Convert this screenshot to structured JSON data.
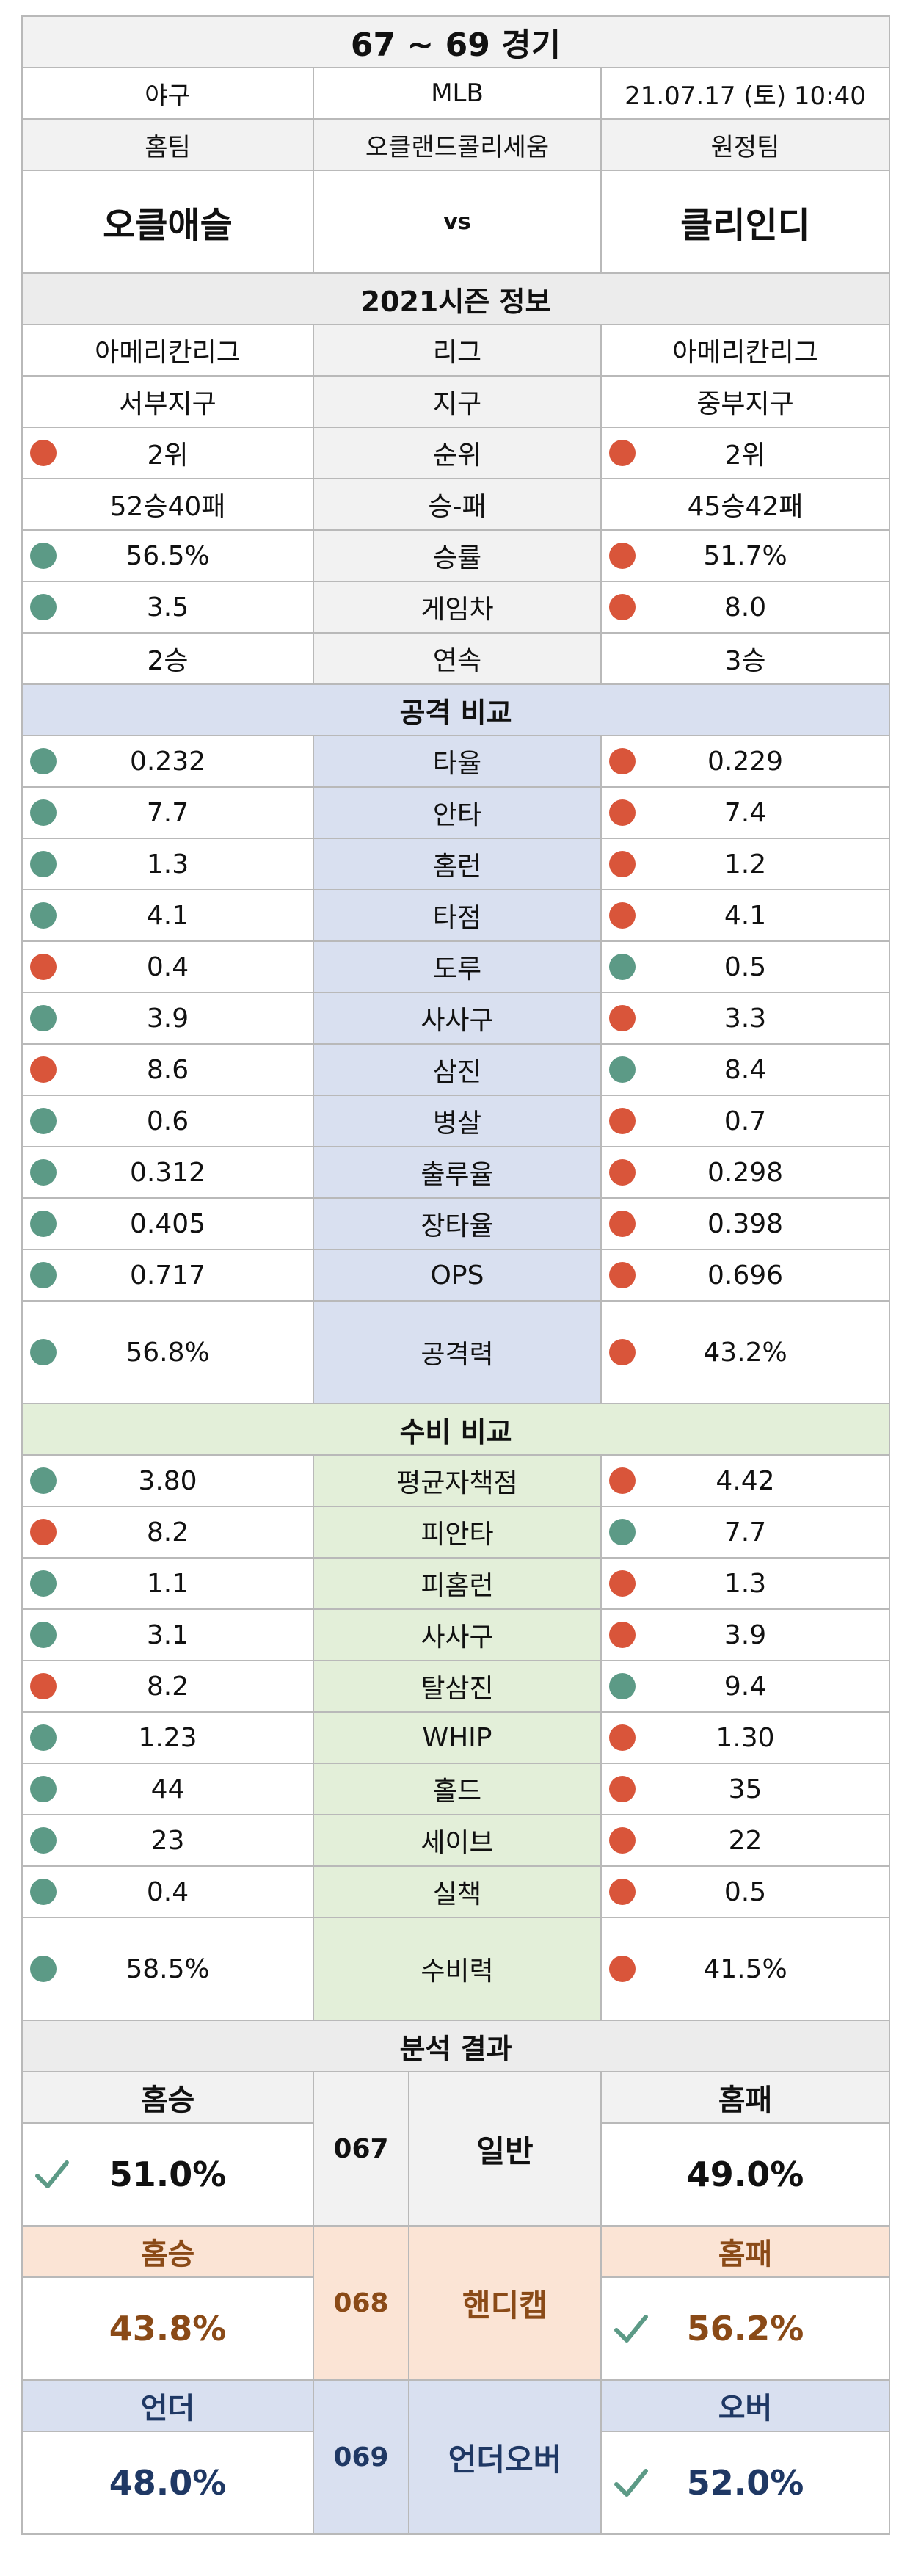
{
  "header": {
    "title": "67 ~ 69 경기",
    "sport": "야구",
    "league": "MLB",
    "datetime": "21.07.17 (토) 10:40",
    "home_label": "홈팀",
    "stadium": "오클랜드콜리세움",
    "away_label": "원정팀",
    "home_team": "오클애슬",
    "vs": "vs",
    "away_team": "클리인디"
  },
  "season": {
    "title": "2021시즌 정보",
    "rows": [
      {
        "home": "아메리칸리그",
        "label": "리그",
        "away": "아메리칸리그",
        "home_dot": "",
        "away_dot": ""
      },
      {
        "home": "서부지구",
        "label": "지구",
        "away": "중부지구",
        "home_dot": "",
        "away_dot": ""
      },
      {
        "home": "2위",
        "label": "순위",
        "away": "2위",
        "home_dot": "red",
        "away_dot": "red"
      },
      {
        "home": "52승40패",
        "label": "승-패",
        "away": "45승42패",
        "home_dot": "",
        "away_dot": ""
      },
      {
        "home": "56.5%",
        "label": "승률",
        "away": "51.7%",
        "home_dot": "green",
        "away_dot": "red"
      },
      {
        "home": "3.5",
        "label": "게임차",
        "away": "8.0",
        "home_dot": "green",
        "away_dot": "red"
      },
      {
        "home": "2승",
        "label": "연속",
        "away": "3승",
        "home_dot": "",
        "away_dot": ""
      }
    ]
  },
  "offense": {
    "title": "공격 비교",
    "rows": [
      {
        "home": "0.232",
        "label": "타율",
        "away": "0.229",
        "home_dot": "green",
        "away_dot": "red"
      },
      {
        "home": "7.7",
        "label": "안타",
        "away": "7.4",
        "home_dot": "green",
        "away_dot": "red"
      },
      {
        "home": "1.3",
        "label": "홈런",
        "away": "1.2",
        "home_dot": "green",
        "away_dot": "red"
      },
      {
        "home": "4.1",
        "label": "타점",
        "away": "4.1",
        "home_dot": "green",
        "away_dot": "red"
      },
      {
        "home": "0.4",
        "label": "도루",
        "away": "0.5",
        "home_dot": "red",
        "away_dot": "green"
      },
      {
        "home": "3.9",
        "label": "사사구",
        "away": "3.3",
        "home_dot": "green",
        "away_dot": "red"
      },
      {
        "home": "8.6",
        "label": "삼진",
        "away": "8.4",
        "home_dot": "red",
        "away_dot": "green"
      },
      {
        "home": "0.6",
        "label": "병살",
        "away": "0.7",
        "home_dot": "green",
        "away_dot": "red"
      },
      {
        "home": "0.312",
        "label": "출루율",
        "away": "0.298",
        "home_dot": "green",
        "away_dot": "red"
      },
      {
        "home": "0.405",
        "label": "장타율",
        "away": "0.398",
        "home_dot": "green",
        "away_dot": "red"
      },
      {
        "home": "0.717",
        "label": "OPS",
        "away": "0.696",
        "home_dot": "green",
        "away_dot": "red"
      }
    ],
    "total": {
      "home": "56.8%",
      "label": "공격력",
      "away": "43.2%",
      "home_dot": "green",
      "away_dot": "red"
    }
  },
  "defense": {
    "title": "수비 비교",
    "rows": [
      {
        "home": "3.80",
        "label": "평균자책점",
        "away": "4.42",
        "home_dot": "green",
        "away_dot": "red"
      },
      {
        "home": "8.2",
        "label": "피안타",
        "away": "7.7",
        "home_dot": "red",
        "away_dot": "green"
      },
      {
        "home": "1.1",
        "label": "피홈런",
        "away": "1.3",
        "home_dot": "green",
        "away_dot": "red"
      },
      {
        "home": "3.1",
        "label": "사사구",
        "away": "3.9",
        "home_dot": "green",
        "away_dot": "red"
      },
      {
        "home": "8.2",
        "label": "탈삼진",
        "away": "9.4",
        "home_dot": "red",
        "away_dot": "green"
      },
      {
        "home": "1.23",
        "label": "WHIP",
        "away": "1.30",
        "home_dot": "green",
        "away_dot": "red"
      },
      {
        "home": "44",
        "label": "홀드",
        "away": "35",
        "home_dot": "green",
        "away_dot": "red"
      },
      {
        "home": "23",
        "label": "세이브",
        "away": "22",
        "home_dot": "green",
        "away_dot": "red"
      },
      {
        "home": "0.4",
        "label": "실책",
        "away": "0.5",
        "home_dot": "green",
        "away_dot": "red"
      }
    ],
    "total": {
      "home": "58.5%",
      "label": "수비력",
      "away": "41.5%",
      "home_dot": "green",
      "away_dot": "red"
    }
  },
  "analysis": {
    "title": "분석 결과",
    "general": {
      "left_label": "홈승",
      "left_value": "51.0%",
      "code": "067",
      "name": "일반",
      "right_label": "홈패",
      "right_value": "49.0%",
      "pick": "left"
    },
    "handicap": {
      "left_label": "홈승",
      "left_value": "43.8%",
      "code": "068",
      "name": "핸디캡",
      "right_label": "홈패",
      "right_value": "56.2%",
      "pick": "right"
    },
    "underover": {
      "left_label": "언더",
      "left_value": "48.0%",
      "code": "069",
      "name": "언더오버",
      "right_label": "오버",
      "right_value": "52.0%",
      "pick": "right"
    }
  },
  "colors": {
    "green_dot": "#5c9a86",
    "red_dot": "#d9553a",
    "blue_section": "#d9e0f0",
    "green_section": "#e3efd9",
    "peach": "#fbe4d5"
  }
}
